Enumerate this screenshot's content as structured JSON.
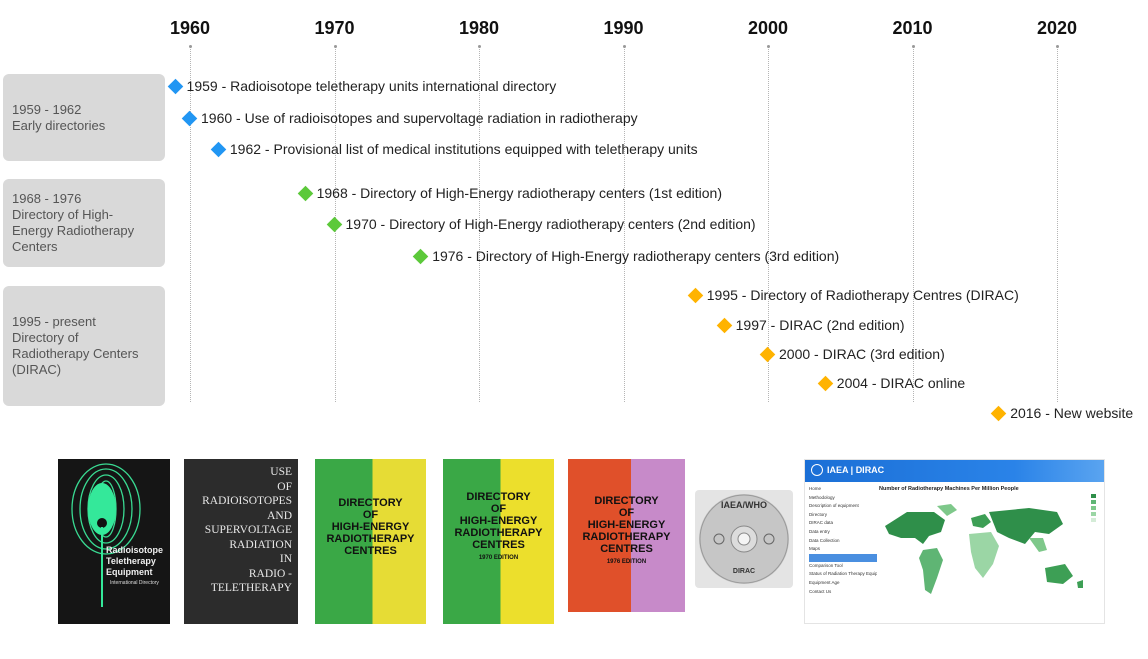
{
  "timeline": {
    "years": [
      "1960",
      "1970",
      "1980",
      "1990",
      "2000",
      "2010",
      "2020"
    ],
    "groups": [
      {
        "label": "1959 - 1962\nEarly directories"
      },
      {
        "label": "1968 - 1976\nDirectory of High-\nEnergy Radiotherapy\nCenters"
      },
      {
        "label": "1995 - present\nDirectory of\nRadiotherapy Centers\n(DIRAC)"
      }
    ],
    "colors": {
      "early": "#2196f3",
      "high_energy": "#5cc93a",
      "dirac": "#ffb300"
    },
    "events": [
      {
        "year": 1959,
        "group": "early",
        "label": "1959 - Radioisotope teletherapy units international directory"
      },
      {
        "year": 1960,
        "group": "early",
        "label": "1960 - Use of radioisotopes and supervoltage radiation in radiotherapy"
      },
      {
        "year": 1962,
        "group": "early",
        "label": "1962 - Provisional list of medical institutions equipped with teletherapy units"
      },
      {
        "year": 1968,
        "group": "high_energy",
        "label": "1968 - Directory of High-Energy radiotherapy centers (1st edition)"
      },
      {
        "year": 1970,
        "group": "high_energy",
        "label": "1970 - Directory of High-Energy radiotherapy centers (2nd edition)"
      },
      {
        "year": 1976,
        "group": "high_energy",
        "label": "1976 - Directory of High-Energy radiotherapy centers (3rd edition)"
      },
      {
        "year": 1995,
        "group": "dirac",
        "label": "1995 - Directory of Radiotherapy Centres (DIRAC)"
      },
      {
        "year": 1997,
        "group": "dirac",
        "label": "1997 - DIRAC (2nd edition)"
      },
      {
        "year": 2000,
        "group": "dirac",
        "label": "2000 - DIRAC (3rd edition)"
      },
      {
        "year": 2004,
        "group": "dirac",
        "label": "2004 - DIRAC online"
      },
      {
        "year": 2016,
        "group": "dirac",
        "label": "2016 - New website"
      }
    ]
  },
  "covers": {
    "radioisotope": {
      "title": "Radioisotope\nTeletherapy\nEquipment",
      "subtitle": "International Directory"
    },
    "use_of_radioisotopes": {
      "title": "USE\nOF\nRADIOISOTOPES\nAND\nSUPERVOLTAGE\nRADIATION\nIN\nRADIO -\nTELETHERAPY"
    },
    "directory_1968": {
      "title": "DIRECTORY\nOF\nHIGH-ENERGY\nRADIOTHERAPY\nCENTRES"
    },
    "directory_1970": {
      "title": "DIRECTORY\nOF\nHIGH-ENERGY\nRADIOTHERAPY\nCENTRES",
      "edition": "1970 EDITION"
    },
    "directory_1976": {
      "title": "DIRECTORY\nOF\nHIGH-ENERGY\nRADIOTHERAPY\nCENTRES",
      "edition": "1976 EDITION"
    },
    "cd": {
      "top": "IAEA/WHO",
      "bottom": "DIRAC"
    },
    "website": {
      "brand": "IAEA | DIRAC",
      "heading": "Number of Radiotherapy Machines Per Million People",
      "menu": [
        "Home",
        "Methodology",
        "Description of equipment",
        "Directory",
        "DIRAC data",
        "Data entry",
        "Data Collection",
        "Maps",
        "",
        "Comparison Tool",
        "Status of Radiation Therapy Equipment",
        "Equipment Age",
        "Contact Us"
      ]
    }
  }
}
